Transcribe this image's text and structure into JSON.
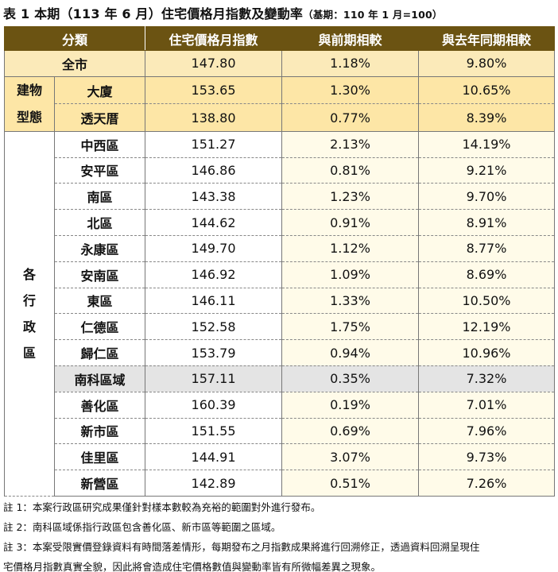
{
  "title": {
    "main": "表 1 本期（113 年 6 月）住宅價格月指數及變動率",
    "base": "（基期：110 年 1 月=100）"
  },
  "table": {
    "headers": [
      "分類",
      "住宅價格月指數",
      "與前期相較",
      "與去年同期相較"
    ],
    "city": {
      "label": "全市",
      "index": "147.80",
      "mom": "1.18%",
      "yoy": "9.80%"
    },
    "building_group": {
      "label_line1": "建物",
      "label_line2": "型態"
    },
    "building_rows": [
      {
        "label": "大廈",
        "index": "153.65",
        "mom": "1.30%",
        "yoy": "10.65%"
      },
      {
        "label": "透天厝",
        "index": "138.80",
        "mom": "0.77%",
        "yoy": "8.39%"
      }
    ],
    "district_group": {
      "chars": [
        "各",
        "行",
        "政",
        "區"
      ]
    },
    "district_rows": [
      {
        "label": "中西區",
        "index": "151.27",
        "mom": "2.13%",
        "yoy": "14.19%"
      },
      {
        "label": "安平區",
        "index": "146.86",
        "mom": "0.81%",
        "yoy": "9.21%"
      },
      {
        "label": "南區",
        "index": "143.38",
        "mom": "1.23%",
        "yoy": "9.70%"
      },
      {
        "label": "北區",
        "index": "144.62",
        "mom": "0.91%",
        "yoy": "8.91%"
      },
      {
        "label": "永康區",
        "index": "149.70",
        "mom": "1.12%",
        "yoy": "8.77%"
      },
      {
        "label": "安南區",
        "index": "146.92",
        "mom": "1.09%",
        "yoy": "8.69%"
      },
      {
        "label": "東區",
        "index": "146.11",
        "mom": "1.33%",
        "yoy": "10.50%"
      },
      {
        "label": "仁德區",
        "index": "152.58",
        "mom": "1.75%",
        "yoy": "12.19%"
      },
      {
        "label": "歸仁區",
        "index": "153.79",
        "mom": "0.94%",
        "yoy": "10.96%"
      }
    ],
    "science_row": {
      "label": "南科區域",
      "index": "157.11",
      "mom": "0.35%",
      "yoy": "7.32%"
    },
    "science_sub_rows": [
      {
        "label": "善化區",
        "index": "160.39",
        "mom": "0.19%",
        "yoy": "7.01%"
      },
      {
        "label": "新市區",
        "index": "151.55",
        "mom": "0.69%",
        "yoy": "7.96%"
      }
    ],
    "other_rows": [
      {
        "label": "佳里區",
        "index": "144.91",
        "mom": "3.07%",
        "yoy": "9.73%"
      },
      {
        "label": "新營區",
        "index": "142.89",
        "mom": "0.51%",
        "yoy": "7.26%"
      }
    ]
  },
  "notes": [
    "註 1：本案行政區研究成果僅針對樣本數較為充裕的範圍對外進行發布。",
    "註 2：南科區域係指行政區包含善化區、新市區等範圍之區域。",
    "註 3：本案受限實價登錄資料有時間落差情形，每期發布之月指數成果將進行回溯修正，透過資料回溯呈現住",
    "宅價格月指數真實全貌，因此將會造成住宅價格數值與變動率皆有所微幅差異之現象。"
  ]
}
